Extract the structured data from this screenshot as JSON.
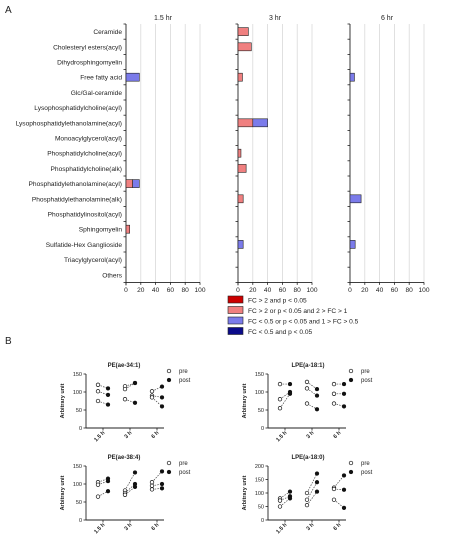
{
  "panel_a_label": "A",
  "panel_b_label": "B",
  "colors": {
    "dark_red": "#cc0000",
    "light_red": "#f08080",
    "light_blue": "#7b7bea",
    "dark_blue": "#0b0b8a",
    "axis": "#222222",
    "grid": "#d9d9d9"
  },
  "chart_data": [
    {
      "type": "bar",
      "orientation": "horizontal",
      "panel": "A",
      "categories": [
        "Ceramide",
        "Cholesteryl esters(acyl)",
        "Dihydrosphingomyelin",
        "Free fatty acid",
        "Glc/Gal-ceramide",
        "Lysophosphatidylcholine(acyl)",
        "Lysophosphatidylethanolamine(acyl)",
        "Monoacylglycerol(acyl)",
        "Phosphatidylcholine(acyl)",
        "Phosphatidylcholine(alk)",
        "Phosphatidylethanolamine(acyl)",
        "Phosphatidylethanolamine(alk)",
        "Phosphatidylinositol(acyl)",
        "Sphingomyelin",
        "Sulfatide-Hex Ganglioside",
        "Triacylglycerol(acyl)",
        "Others"
      ],
      "xlim": [
        0,
        100
      ],
      "xticks": [
        "0",
        "20",
        "40",
        "60",
        "80",
        "100"
      ],
      "grid": true,
      "legend_position": "bottom-right",
      "legend": [
        {
          "label": "FC > 2 and p < 0.05",
          "color_key": "dark_red"
        },
        {
          "label": "FC > 2 or p < 0.05 and 2 > FC > 1",
          "color_key": "light_red"
        },
        {
          "label": "FC < 0.5 or p < 0.05 and 1 > FC > 0.5",
          "color_key": "light_blue"
        },
        {
          "label": "FC < 0.5 and p < 0.05",
          "color_key": "dark_blue"
        }
      ],
      "facets": [
        {
          "title": "1.5 hr",
          "bars": [
            {
              "category": "Free fatty acid",
              "segments": [
                {
                  "value": 18,
                  "color_key": "light_blue"
                }
              ]
            },
            {
              "category": "Phosphatidylethanolamine(acyl)",
              "segments": [
                {
                  "value": 9,
                  "color_key": "light_red"
                },
                {
                  "value": 9,
                  "color_key": "light_blue"
                }
              ]
            },
            {
              "category": "Sphingomyelin",
              "segments": [
                {
                  "value": 5,
                  "color_key": "light_red"
                }
              ]
            }
          ]
        },
        {
          "title": "3 hr",
          "bars": [
            {
              "category": "Ceramide",
              "segments": [
                {
                  "value": 14,
                  "color_key": "light_red"
                }
              ]
            },
            {
              "category": "Cholesteryl esters(acyl)",
              "segments": [
                {
                  "value": 18,
                  "color_key": "light_red"
                }
              ]
            },
            {
              "category": "Free fatty acid",
              "segments": [
                {
                  "value": 6,
                  "color_key": "light_red"
                }
              ]
            },
            {
              "category": "Lysophosphatidylethanolamine(acyl)",
              "segments": [
                {
                  "value": 20,
                  "color_key": "light_red"
                },
                {
                  "value": 20,
                  "color_key": "light_blue"
                }
              ]
            },
            {
              "category": "Phosphatidylcholine(acyl)",
              "segments": [
                {
                  "value": 4,
                  "color_key": "light_red"
                }
              ]
            },
            {
              "category": "Phosphatidylcholine(alk)",
              "segments": [
                {
                  "value": 11,
                  "color_key": "light_red"
                }
              ]
            },
            {
              "category": "Phosphatidylethanolamine(alk)",
              "segments": [
                {
                  "value": 7,
                  "color_key": "light_red"
                }
              ]
            },
            {
              "category": "Sulfatide-Hex Ganglioside",
              "segments": [
                {
                  "value": 7,
                  "color_key": "light_blue"
                }
              ]
            }
          ]
        },
        {
          "title": "6 hr",
          "bars": [
            {
              "category": "Free fatty acid",
              "segments": [
                {
                  "value": 6,
                  "color_key": "light_blue"
                }
              ]
            },
            {
              "category": "Phosphatidylethanolamine(alk)",
              "segments": [
                {
                  "value": 15,
                  "color_key": "light_blue"
                }
              ]
            },
            {
              "category": "Sulfatide-Hex Ganglioside",
              "segments": [
                {
                  "value": 7,
                  "color_key": "light_blue"
                }
              ]
            }
          ]
        }
      ]
    },
    {
      "type": "line",
      "panel": "B",
      "title": "PE(ae-34:1)",
      "ylabel": "Arbitrary unit",
      "ylim": [
        0,
        150
      ],
      "yticks": [
        "0",
        "50",
        "100",
        "150"
      ],
      "categories": [
        "1.5 h",
        "3 h",
        "6 h"
      ],
      "legend": [
        "pre",
        "post"
      ],
      "pairs": [
        {
          "category": "1.5 h",
          "lines": [
            [
              120,
              110
            ],
            [
              102,
              92
            ],
            [
              75,
              65
            ]
          ]
        },
        {
          "category": "3 h",
          "lines": [
            [
              116,
              125
            ],
            [
              108,
              125
            ],
            [
              80,
              70
            ]
          ]
        },
        {
          "category": "6 h",
          "lines": [
            [
              102,
              115
            ],
            [
              90,
              85
            ],
            [
              85,
              60
            ]
          ]
        }
      ]
    },
    {
      "type": "line",
      "panel": "B",
      "title": "LPE(a-18:1)",
      "ylabel": "Arbitrary unit",
      "ylim": [
        0,
        150
      ],
      "yticks": [
        "0",
        "50",
        "100",
        "150"
      ],
      "categories": [
        "1.5 h",
        "3 h",
        "6 h"
      ],
      "legend": [
        "pre",
        "post"
      ],
      "pairs": [
        {
          "category": "1.5 h",
          "lines": [
            [
              122,
              122
            ],
            [
              80,
              100
            ],
            [
              55,
              95
            ]
          ]
        },
        {
          "category": "3 h",
          "lines": [
            [
              128,
              108
            ],
            [
              110,
              90
            ],
            [
              68,
              52
            ]
          ]
        },
        {
          "category": "6 h",
          "lines": [
            [
              122,
              122
            ],
            [
              95,
              95
            ],
            [
              68,
              60
            ]
          ]
        }
      ]
    },
    {
      "type": "line",
      "panel": "B",
      "title": "PE(ae-38:4)",
      "ylabel": "Arbitrary unit",
      "ylim": [
        0,
        150
      ],
      "yticks": [
        "0",
        "50",
        "100",
        "150"
      ],
      "categories": [
        "1.5 h",
        "3 h",
        "6 h"
      ],
      "legend": [
        "pre",
        "post"
      ],
      "pairs": [
        {
          "category": "1.5 h",
          "lines": [
            [
              105,
              115
            ],
            [
              98,
              108
            ],
            [
              65,
              80
            ]
          ]
        },
        {
          "category": "3 h",
          "lines": [
            [
              82,
              132
            ],
            [
              75,
              100
            ],
            [
              70,
              92
            ]
          ]
        },
        {
          "category": "6 h",
          "lines": [
            [
              105,
              135
            ],
            [
              95,
              100
            ],
            [
              85,
              88
            ]
          ]
        }
      ]
    },
    {
      "type": "line",
      "panel": "B",
      "title": "LPE(a-18:0)",
      "ylabel": "Arbitrary unit",
      "ylim": [
        0,
        200
      ],
      "yticks": [
        "0",
        "50",
        "100",
        "150",
        "200"
      ],
      "categories": [
        "1.5 h",
        "3 h",
        "6 h"
      ],
      "legend": [
        "pre",
        "post"
      ],
      "pairs": [
        {
          "category": "1.5 h",
          "lines": [
            [
              80,
              105
            ],
            [
              72,
              88
            ],
            [
              50,
              80
            ]
          ]
        },
        {
          "category": "3 h",
          "lines": [
            [
              100,
              172
            ],
            [
              75,
              140
            ],
            [
              55,
              105
            ]
          ]
        },
        {
          "category": "6 h",
          "lines": [
            [
              120,
              165
            ],
            [
              115,
              112
            ],
            [
              75,
              45
            ]
          ]
        }
      ]
    }
  ]
}
